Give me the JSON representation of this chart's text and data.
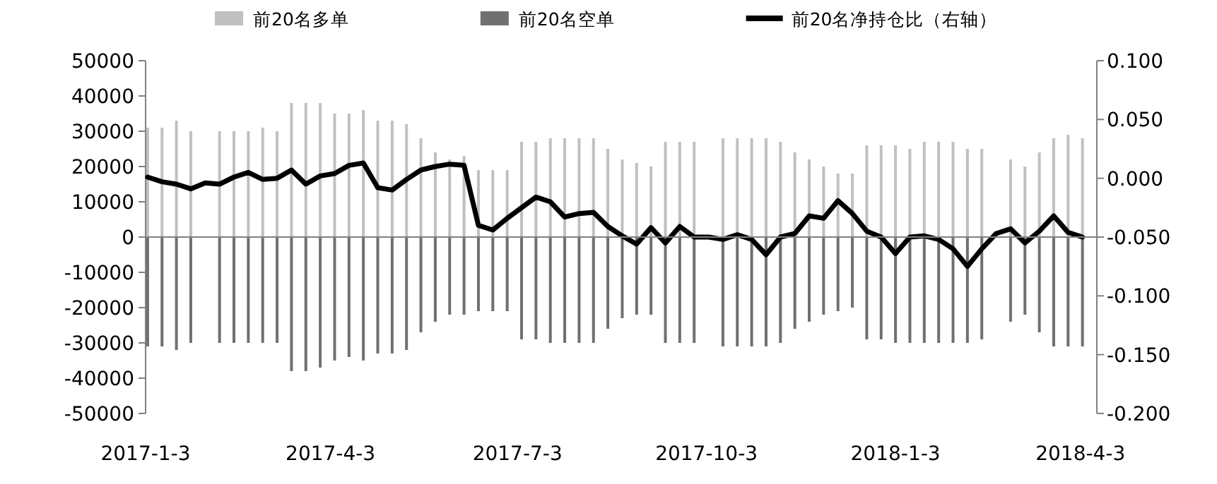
{
  "chart_data": {
    "type": "bar",
    "legend": "top",
    "x": [
      "2017-01-04",
      "2017-01-11",
      "2017-01-18",
      "2017-01-25",
      "2017-02-01",
      "2017-02-08",
      "2017-02-15",
      "2017-02-22",
      "2017-03-01",
      "2017-03-08",
      "2017-03-15",
      "2017-03-22",
      "2017-03-29",
      "2017-04-05",
      "2017-04-12",
      "2017-04-19",
      "2017-04-26",
      "2017-05-03",
      "2017-05-10",
      "2017-05-17",
      "2017-05-24",
      "2017-05-31",
      "2017-06-07",
      "2017-06-14",
      "2017-06-21",
      "2017-06-28",
      "2017-07-05",
      "2017-07-12",
      "2017-07-19",
      "2017-07-26",
      "2017-08-02",
      "2017-08-09",
      "2017-08-16",
      "2017-08-23",
      "2017-08-30",
      "2017-09-06",
      "2017-09-13",
      "2017-09-20",
      "2017-09-27",
      "2017-10-04",
      "2017-10-11",
      "2017-10-18",
      "2017-10-25",
      "2017-11-01",
      "2017-11-08",
      "2017-11-15",
      "2017-11-22",
      "2017-11-29",
      "2017-12-06",
      "2017-12-13",
      "2017-12-20",
      "2017-12-27",
      "2018-01-03",
      "2018-01-10",
      "2018-01-17",
      "2018-01-24",
      "2018-01-31",
      "2018-02-07",
      "2018-02-14",
      "2018-02-21",
      "2018-02-28",
      "2018-03-07",
      "2018-03-14",
      "2018-03-21",
      "2018-03-28",
      "2018-04-04"
    ],
    "series": [
      {
        "name": "前20名多单",
        "type": "bar",
        "color": "#c0c0c0",
        "values": [
          31000,
          31000,
          33000,
          30000,
          null,
          30000,
          30000,
          30000,
          31000,
          30000,
          38000,
          38000,
          38000,
          35000,
          35000,
          36000,
          33000,
          33000,
          32000,
          28000,
          24000,
          22000,
          23000,
          19000,
          19000,
          19000,
          27000,
          27000,
          28000,
          28000,
          28000,
          28000,
          25000,
          22000,
          21000,
          20000,
          27000,
          27000,
          27000,
          null,
          28000,
          28000,
          28000,
          28000,
          27000,
          24000,
          22000,
          20000,
          18000,
          18000,
          26000,
          26000,
          26000,
          25000,
          27000,
          27000,
          27000,
          25000,
          25000,
          null,
          22000,
          20000,
          24000,
          28000,
          29000,
          28000
        ]
      },
      {
        "name": "前20名空单",
        "type": "bar",
        "color": "#707070",
        "values": [
          -31000,
          -31000,
          -32000,
          -30000,
          null,
          -30000,
          -30000,
          -30000,
          -30000,
          -30000,
          -38000,
          -38000,
          -37000,
          -35000,
          -34000,
          -35000,
          -33000,
          -33000,
          -32000,
          -27000,
          -24000,
          -22000,
          -22000,
          -21000,
          -21000,
          -21000,
          -29000,
          -29000,
          -30000,
          -30000,
          -30000,
          -30000,
          -26000,
          -23000,
          -22000,
          -22000,
          -30000,
          -30000,
          -30000,
          null,
          -31000,
          -31000,
          -31000,
          -31000,
          -30000,
          -26000,
          -24000,
          -22000,
          -21000,
          -20000,
          -29000,
          -29000,
          -30000,
          -30000,
          -30000,
          -30000,
          -30000,
          -30000,
          -29000,
          null,
          -24000,
          -22000,
          -27000,
          -31000,
          -31000,
          -31000
        ]
      },
      {
        "name": "前20名净持仓比（右轴）",
        "type": "line",
        "axis": "y2",
        "color": "#000000",
        "values": [
          0.001,
          -0.003,
          -0.005,
          -0.009,
          -0.004,
          -0.005,
          0.001,
          0.005,
          -0.001,
          0.0,
          0.007,
          -0.005,
          0.002,
          0.004,
          0.011,
          0.013,
          -0.008,
          -0.01,
          -0.001,
          0.007,
          0.01,
          0.012,
          0.011,
          -0.04,
          -0.044,
          -0.034,
          -0.025,
          -0.016,
          -0.02,
          -0.033,
          -0.03,
          -0.029,
          -0.041,
          -0.049,
          -0.056,
          -0.042,
          -0.055,
          -0.041,
          -0.05,
          -0.05,
          -0.052,
          -0.048,
          -0.052,
          -0.065,
          -0.05,
          -0.047,
          -0.032,
          -0.034,
          -0.019,
          -0.03,
          -0.045,
          -0.05,
          -0.064,
          -0.05,
          -0.049,
          -0.052,
          -0.06,
          -0.075,
          -0.06,
          -0.047,
          -0.043,
          -0.055,
          -0.045,
          -0.032,
          -0.046,
          -0.05
        ]
      }
    ],
    "xlim": [
      "2017-01-03",
      "2018-04-11"
    ],
    "xticks": [
      {
        "value": "2017-01-03",
        "label": "2017-1-3"
      },
      {
        "value": "2017-04-03",
        "label": "2017-4-3"
      },
      {
        "value": "2017-07-03",
        "label": "2017-7-3"
      },
      {
        "value": "2017-10-03",
        "label": "2017-10-3"
      },
      {
        "value": "2018-01-03",
        "label": "2018-1-3"
      },
      {
        "value": "2018-04-03",
        "label": "2018-4-3"
      }
    ],
    "ylim": [
      -50000,
      50000
    ],
    "yticks": [
      -50000,
      -40000,
      -30000,
      -20000,
      -10000,
      0,
      10000,
      20000,
      30000,
      40000,
      50000
    ],
    "y2lim": [
      -0.2,
      0.1
    ],
    "y2ticks": [
      {
        "value": -0.2,
        "label": "-0.200"
      },
      {
        "value": -0.15,
        "label": "-0.150"
      },
      {
        "value": -0.1,
        "label": "-0.100"
      },
      {
        "value": -0.05,
        "label": "-0.050"
      },
      {
        "value": 0,
        "label": "0.000"
      },
      {
        "value": 0.05,
        "label": "0.050"
      },
      {
        "value": 0.1,
        "label": "0.100"
      }
    ]
  }
}
